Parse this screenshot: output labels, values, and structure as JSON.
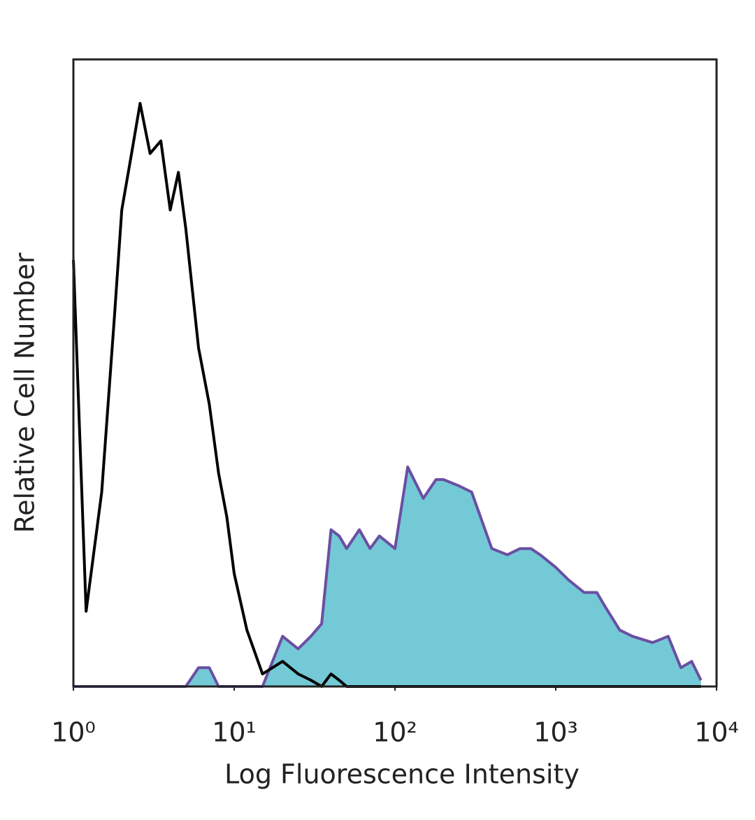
{
  "chart_data": {
    "type": "histogram-overlay",
    "xlabel": "Log Fluorescence Intensity",
    "ylabel": "Relative Cell Number",
    "xscale": "log",
    "xlim": [
      1,
      10000
    ],
    "xticks": [
      {
        "value": 1,
        "label": "10⁰"
      },
      {
        "value": 10,
        "label": "10¹"
      },
      {
        "value": 100,
        "label": "10²"
      },
      {
        "value": 1000,
        "label": "10³"
      },
      {
        "value": 10000,
        "label": "10⁴"
      }
    ],
    "ylim": [
      0,
      100
    ],
    "x": [
      1,
      1.2,
      1.5,
      1.8,
      2,
      2.3,
      2.6,
      3,
      3.5,
      4,
      4.5,
      5,
      6,
      7,
      8,
      9,
      10,
      12,
      15,
      20,
      25,
      30,
      35,
      40,
      45,
      50,
      60,
      70,
      80,
      100,
      120,
      150,
      180,
      200,
      250,
      300,
      400,
      500,
      600,
      700,
      800,
      1000,
      1200,
      1500,
      1800,
      2000,
      2500,
      3000,
      4000,
      5000,
      6000,
      7000,
      8000
    ],
    "series": [
      {
        "color": "#000000",
        "filled": false,
        "values": [
          68,
          12,
          31,
          59,
          76,
          85,
          93,
          85,
          87,
          76,
          82,
          73,
          54,
          45,
          34,
          27,
          18,
          9,
          2,
          4,
          2,
          1,
          0,
          2,
          1,
          0,
          0,
          0,
          0,
          0,
          0,
          0,
          0,
          0,
          0,
          0,
          0,
          0,
          0,
          0,
          0,
          0,
          0,
          0,
          0,
          0,
          0,
          0,
          0,
          0,
          0,
          0,
          0
        ]
      },
      {
        "color": "#6a4fa3",
        "fill": "#74c9d6",
        "filled": true,
        "values": [
          0,
          0,
          0,
          0,
          0,
          0,
          0,
          0,
          0,
          0,
          0,
          0,
          3,
          3,
          0,
          0,
          0,
          0,
          0,
          8,
          6,
          8,
          10,
          25,
          24,
          22,
          25,
          22,
          24,
          22,
          35,
          30,
          33,
          33,
          32,
          31,
          22,
          21,
          22,
          22,
          21,
          19,
          17,
          15,
          15,
          13,
          9,
          8,
          7,
          8,
          3,
          4,
          1
        ]
      }
    ]
  }
}
